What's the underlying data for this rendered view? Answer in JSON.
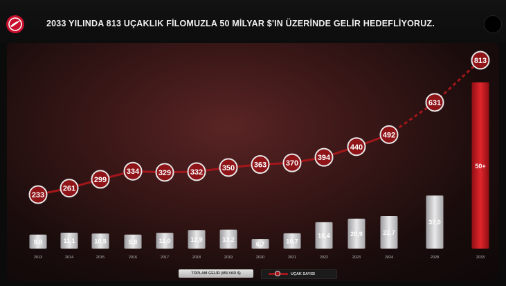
{
  "header": {
    "title": "2033 YILINDA 813 UÇAKLIK FİLOMUZLA 50 MİLYAR $'IN ÜZERİNDE GELİR HEDEFLİYORUZ.",
    "logo_icon": "turkish-airlines-logo-icon"
  },
  "colors": {
    "bar": "#d9d9d9",
    "bar_highlight": "#c4161c",
    "line": "#a3161b",
    "marker_fill": "#8e1418",
    "marker_stroke": "#e8e8e8"
  },
  "chart_data": {
    "type": "bar",
    "categories": [
      "2013",
      "2014",
      "2015",
      "2016",
      "2017",
      "2018",
      "2019",
      "2020",
      "2021",
      "2022",
      "2023",
      "2024",
      "2028",
      "2033"
    ],
    "series": [
      {
        "name": "TOPLAM GELİR (MİLYAR $)",
        "type": "bar",
        "values": [
          9.8,
          11.1,
          10.5,
          9.8,
          11.0,
          12.9,
          13.2,
          6.7,
          10.7,
          18.4,
          20.9,
          22.7,
          37.0,
          50
        ],
        "labels": [
          "9,8",
          "11,1",
          "10,5",
          "9,8",
          "11,0",
          "12,9",
          "13,2",
          "6,7",
          "10,7",
          "18,4",
          "20,9",
          "22,7",
          "37,0",
          "50+"
        ]
      },
      {
        "name": "UÇAK SAYISI",
        "type": "line",
        "values": [
          233,
          261,
          299,
          334,
          329,
          332,
          350,
          363,
          370,
          394,
          440,
          492,
          631,
          813
        ],
        "labels": [
          "233",
          "261",
          "299",
          "334",
          "329",
          "332",
          "350",
          "363",
          "370",
          "394",
          "440",
          "492",
          "631",
          "813"
        ],
        "dashed_from_category": "2024"
      }
    ],
    "highlight_category": "2033",
    "legend": [
      "TOPLAM GELİR (MİLYAR $)",
      "UÇAK SAYISI"
    ],
    "legend_position": "bottom-center",
    "grid": false
  },
  "legend": {
    "bars_label": "TOPLAM GELİR (MİLYAR $)",
    "line_label": "UÇAK SAYISI"
  }
}
